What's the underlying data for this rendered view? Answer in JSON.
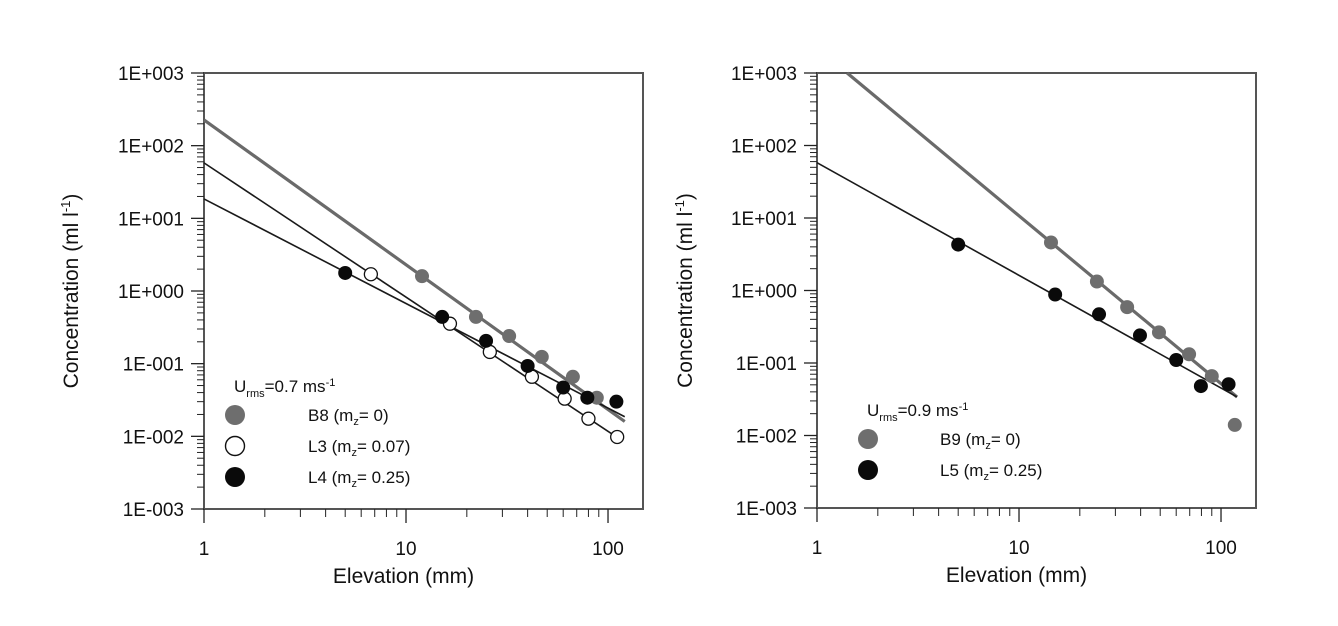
{
  "chart_data": [
    {
      "type": "scatter",
      "panel": "left",
      "title": "",
      "xlabel": "Elevation (mm)",
      "ylabel": "Concentration (ml l-1)",
      "ylabel_main": "Concentration (ml l",
      "ylabel_sup": "-1",
      "ylabel_close": ")",
      "xscale": "log",
      "yscale": "log",
      "xlim": [
        1,
        149
      ],
      "ylim": [
        0.001,
        1000
      ],
      "xticks": [
        1,
        10,
        100
      ],
      "xtick_labels": [
        "1",
        "10",
        "100"
      ],
      "yticks": [
        1000,
        100,
        10,
        1,
        0.1,
        0.01,
        0.001
      ],
      "ytick_labels": [
        "1E+003",
        "1E+002",
        "1E+001",
        "1E+000",
        "1E-001",
        "1E-002",
        "1E-003"
      ],
      "grid": false,
      "legend": {
        "placement": "bottom-left",
        "title_main": "U",
        "title_sub": "rms",
        "title_rest": "=0.7 ms",
        "title_sup": "-1",
        "entries": [
          {
            "series": "B8",
            "label_a": "B8  (m",
            "label_sub": "z",
            "label_b": "= 0)"
          },
          {
            "series": "L3",
            "label_a": "L3  (m",
            "label_sub": "z",
            "label_b": "= 0.07)"
          },
          {
            "series": "L4",
            "label_a": "L4  (m",
            "label_sub": "z",
            "label_b": "= 0.25)"
          }
        ]
      },
      "series": [
        {
          "name": "B8",
          "m_z": 0,
          "marker": "filled",
          "color": "#6e6e6e",
          "x": [
            12.0,
            22.2,
            32.4,
            47,
            67,
            88
          ],
          "y": [
            1.6,
            0.44,
            0.24,
            0.124,
            0.066,
            0.034
          ],
          "fit": {
            "x": [
              1,
              121
            ],
            "y": [
              226,
              0.016
            ]
          }
        },
        {
          "name": "L3",
          "m_z": 0.07,
          "marker": "open",
          "color": "#111111",
          "x": [
            6.7,
            16.5,
            26,
            42,
            61,
            80,
            111
          ],
          "y": [
            1.7,
            0.355,
            0.145,
            0.066,
            0.033,
            0.0175,
            0.0098
          ],
          "fit": {
            "x": [
              1,
              112
            ],
            "y": [
              58,
              0.0095
            ]
          }
        },
        {
          "name": "L4",
          "m_z": 0.25,
          "marker": "filled",
          "color": "#0a0a0a",
          "x": [
            5.0,
            15.1,
            24.9,
            40,
            60,
            79,
            110
          ],
          "y": [
            1.77,
            0.44,
            0.206,
            0.093,
            0.047,
            0.034,
            0.03
          ],
          "fit": {
            "x": [
              1,
              121
            ],
            "y": [
              18.5,
              0.0186
            ]
          }
        }
      ]
    },
    {
      "type": "scatter",
      "panel": "right",
      "title": "",
      "xlabel": "Elevation (mm)",
      "ylabel": "Concentration (ml l-1)",
      "ylabel_main": "Concentration (ml l",
      "ylabel_sup": "-1",
      "ylabel_close": ")",
      "xscale": "log",
      "yscale": "log",
      "xlim": [
        1,
        149
      ],
      "ylim": [
        0.001,
        1000
      ],
      "xticks": [
        1,
        10,
        100
      ],
      "xtick_labels": [
        "1",
        "10",
        "100"
      ],
      "yticks": [
        1000,
        100,
        10,
        1,
        0.1,
        0.01,
        0.001
      ],
      "ytick_labels": [
        "1E+003",
        "1E+002",
        "1E+001",
        "1E+000",
        "1E-001",
        "1E-002",
        "1E-003"
      ],
      "grid": false,
      "legend": {
        "placement": "bottom-left",
        "title_main": "U",
        "title_sub": "rms",
        "title_rest": "=0.9 ms",
        "title_sup": "-1",
        "entries": [
          {
            "series": "B9",
            "label_a": "B9  (m",
            "label_sub": "z",
            "label_b": "= 0)"
          },
          {
            "series": "L5",
            "label_a": "L5  (m",
            "label_sub": "z",
            "label_b": "= 0.25)"
          }
        ]
      },
      "series": [
        {
          "name": "B9",
          "m_z": 0,
          "marker": "filled",
          "color": "#6e6e6e",
          "x": [
            14.4,
            24.3,
            34.3,
            49.3,
            69.5,
            90,
            117
          ],
          "y": [
            4.6,
            1.33,
            0.59,
            0.265,
            0.132,
            0.066,
            0.014
          ],
          "fit": {
            "x": [
              1.41,
              120
            ],
            "y": [
              1000,
              0.034
            ]
          }
        },
        {
          "name": "L5",
          "m_z": 0.25,
          "marker": "filled",
          "color": "#0a0a0a",
          "x": [
            5.0,
            15.1,
            24.9,
            39.7,
            60,
            79.5,
            109
          ],
          "y": [
            4.3,
            0.88,
            0.47,
            0.24,
            0.11,
            0.048,
            0.051
          ],
          "fit": {
            "x": [
              1,
              120
            ],
            "y": [
              58,
              0.034
            ]
          }
        }
      ]
    }
  ]
}
